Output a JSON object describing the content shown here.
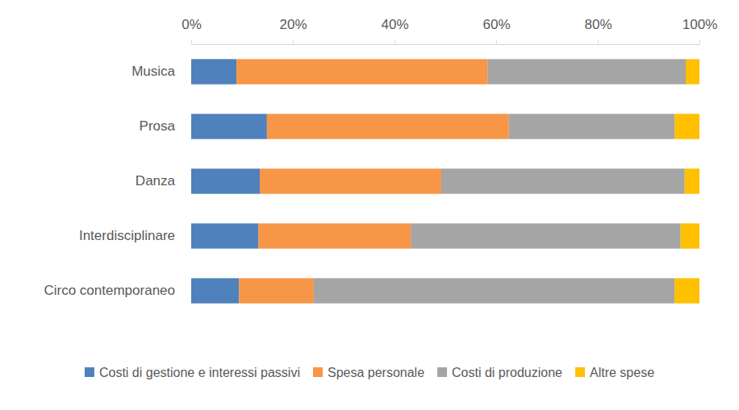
{
  "chart_data": {
    "type": "bar",
    "orientation": "horizontal",
    "stacked": true,
    "grid": false,
    "legend": "bottom",
    "categories": [
      "Musica",
      "Prosa",
      "Danza",
      "Interdisciplinare",
      "Circo contemporaneo"
    ],
    "series": [
      {
        "name": "Costi di gestione e interessi passivi",
        "color": "#4f81bd",
        "values": [
          8.9,
          14.9,
          13.5,
          13.2,
          9.4
        ]
      },
      {
        "name": "Spesa personale",
        "color": "#f79646",
        "values": [
          49.4,
          47.6,
          35.7,
          30.0,
          14.7
        ]
      },
      {
        "name": "Costi di produzione",
        "color": "#a5a5a5",
        "values": [
          39.0,
          32.6,
          47.9,
          53.1,
          71.0
        ]
      },
      {
        "name": "Altre spese",
        "color": "#ffc000",
        "values": [
          2.7,
          4.9,
          2.9,
          3.7,
          4.9
        ]
      }
    ],
    "xlim": [
      0,
      100
    ],
    "xticks": [
      {
        "value": 0,
        "label": "0%"
      },
      {
        "value": 20,
        "label": "20%"
      },
      {
        "value": 40,
        "label": "40%"
      },
      {
        "value": 60,
        "label": "60%"
      },
      {
        "value": 80,
        "label": "80%"
      },
      {
        "value": 100,
        "label": "100%"
      }
    ]
  }
}
